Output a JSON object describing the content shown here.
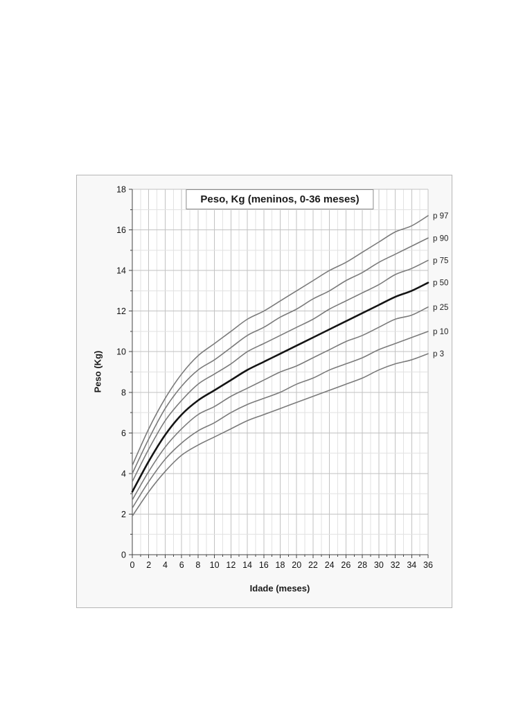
{
  "panel": {
    "background": "#f8f8f8",
    "border_color": "#b5b5b5",
    "plot_background": "#ffffff"
  },
  "colors": {
    "major_grid": "#c2c2c2",
    "minor_grid": "#e2e2e2",
    "axis": "#444444",
    "tick_text": "#111111",
    "percentile_line": "#7a7a7a",
    "median_line": "#141414",
    "label_text": "#222222"
  },
  "chart_data": {
    "type": "line",
    "title": "Peso, Kg (meninos, 0-36 meses)",
    "xlabel": "Idade (meses)",
    "ylabel": "Peso (Kg)",
    "xlim": [
      0,
      36
    ],
    "ylim": [
      0,
      18
    ],
    "x_tick_step": 2,
    "y_tick_step": 2,
    "minor_grid_step": 1,
    "grid": true,
    "legend_position": "right-edge-labels",
    "x": [
      0,
      2,
      4,
      6,
      8,
      10,
      12,
      14,
      16,
      18,
      20,
      22,
      24,
      26,
      28,
      30,
      32,
      34,
      36
    ],
    "series": [
      {
        "name": "p 97",
        "emphasis": false,
        "values": [
          4.4,
          6.2,
          7.7,
          8.9,
          9.8,
          10.4,
          11.0,
          11.6,
          12.0,
          12.5,
          13.0,
          13.5,
          14.0,
          14.4,
          14.9,
          15.4,
          15.9,
          16.2,
          16.7
        ]
      },
      {
        "name": "p 90",
        "emphasis": false,
        "values": [
          4.0,
          5.7,
          7.2,
          8.3,
          9.1,
          9.6,
          10.2,
          10.8,
          11.2,
          11.7,
          12.1,
          12.6,
          13.0,
          13.5,
          13.9,
          14.4,
          14.8,
          15.2,
          15.6
        ]
      },
      {
        "name": "p 75",
        "emphasis": false,
        "values": [
          3.6,
          5.2,
          6.6,
          7.6,
          8.4,
          8.9,
          9.4,
          10.0,
          10.4,
          10.8,
          11.2,
          11.6,
          12.1,
          12.5,
          12.9,
          13.3,
          13.8,
          14.1,
          14.5
        ]
      },
      {
        "name": "p 50",
        "emphasis": true,
        "values": [
          3.1,
          4.6,
          5.9,
          6.9,
          7.6,
          8.1,
          8.6,
          9.1,
          9.5,
          9.9,
          10.3,
          10.7,
          11.1,
          11.5,
          11.9,
          12.3,
          12.7,
          13.0,
          13.4
        ]
      },
      {
        "name": "p 25",
        "emphasis": false,
        "values": [
          2.7,
          4.1,
          5.3,
          6.2,
          6.9,
          7.3,
          7.8,
          8.2,
          8.6,
          9.0,
          9.3,
          9.7,
          10.1,
          10.5,
          10.8,
          11.2,
          11.6,
          11.8,
          12.2
        ]
      },
      {
        "name": "p 10",
        "emphasis": false,
        "values": [
          2.3,
          3.6,
          4.7,
          5.5,
          6.1,
          6.5,
          7.0,
          7.4,
          7.7,
          8.0,
          8.4,
          8.7,
          9.1,
          9.4,
          9.7,
          10.1,
          10.4,
          10.7,
          11.0
        ]
      },
      {
        "name": "p 3",
        "emphasis": false,
        "values": [
          1.9,
          3.1,
          4.1,
          4.9,
          5.4,
          5.8,
          6.2,
          6.6,
          6.9,
          7.2,
          7.5,
          7.8,
          8.1,
          8.4,
          8.7,
          9.1,
          9.4,
          9.6,
          9.9
        ]
      }
    ]
  }
}
